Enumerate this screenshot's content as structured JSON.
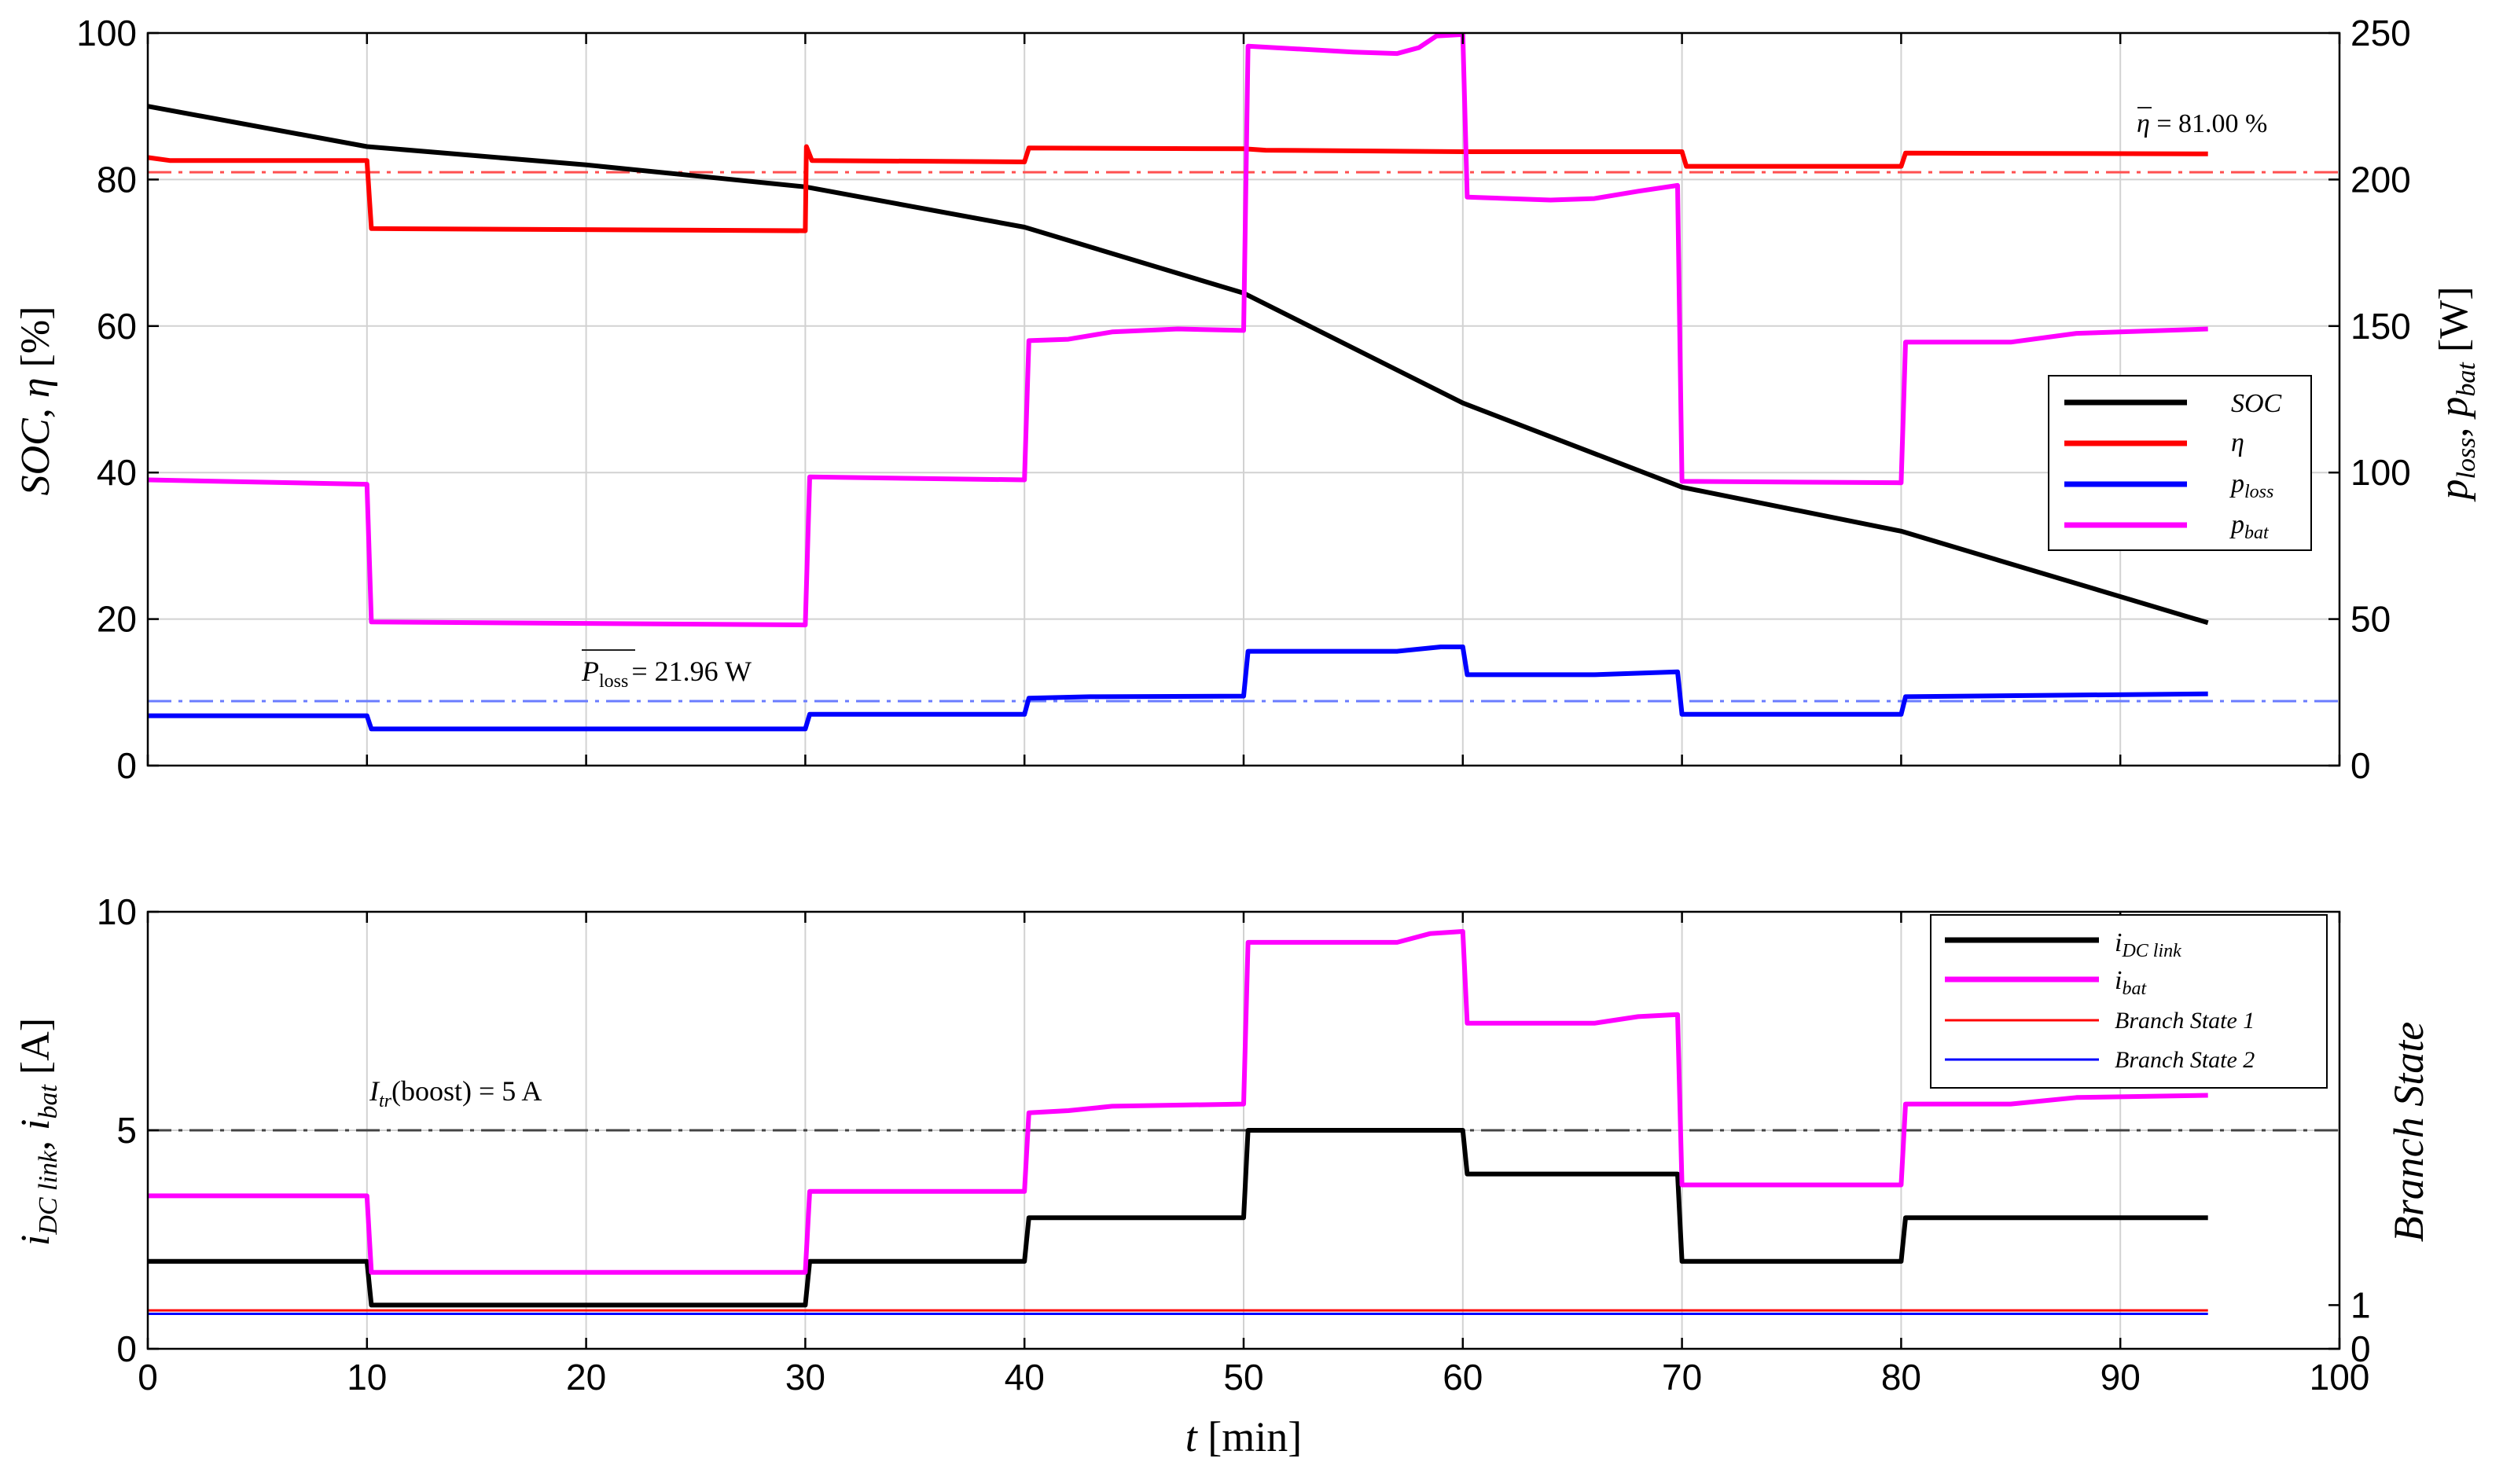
{
  "chart_data": [
    {
      "type": "line",
      "x": [
        0,
        10,
        30,
        40,
        50,
        60,
        70,
        80,
        94
      ],
      "xlim": [
        0,
        100
      ],
      "xticks": [
        0,
        10,
        20,
        30,
        40,
        50,
        60,
        70,
        80,
        90,
        100
      ],
      "ylim": [
        0,
        100
      ],
      "yticks": [
        0,
        20,
        40,
        60,
        80,
        100
      ],
      "ylabel": "SOC, η [%]",
      "ylim_right": [
        0,
        250
      ],
      "yticks_right": [
        0,
        50,
        100,
        150,
        200,
        250
      ],
      "ylabel_right": "p_loss, p_bat [W]",
      "grid": true,
      "legend_position": "right",
      "legend": [
        "SOC",
        "η",
        "p_loss",
        "p_bat"
      ],
      "series": [
        {
          "name": "SOC",
          "axis": "left",
          "color": "#000000",
          "points": [
            [
              0,
              90
            ],
            [
              10,
              84.5
            ],
            [
              20,
              82
            ],
            [
              30,
              79
            ],
            [
              40,
              73.5
            ],
            [
              50,
              64.5
            ],
            [
              60,
              49.5
            ],
            [
              70,
              38
            ],
            [
              80,
              32
            ],
            [
              94,
              19.5
            ]
          ]
        },
        {
          "name": "η",
          "axis": "left",
          "color": "#ff0000",
          "points": [
            [
              0,
              83
            ],
            [
              1,
              82.6
            ],
            [
              10,
              82.6
            ],
            [
              10.2,
              73.3
            ],
            [
              30,
              73
            ],
            [
              30.05,
              84.5
            ],
            [
              30.3,
              82.6
            ],
            [
              40,
              82.4
            ],
            [
              40.2,
              84.3
            ],
            [
              50,
              84.2
            ],
            [
              51,
              84
            ],
            [
              60,
              83.8
            ],
            [
              70,
              83.8
            ],
            [
              70.2,
              81.8
            ],
            [
              80,
              81.8
            ],
            [
              80.2,
              83.6
            ],
            [
              94,
              83.5
            ]
          ]
        },
        {
          "name": "p_loss",
          "axis": "right",
          "color": "#0000ff",
          "points": [
            [
              0,
              17
            ],
            [
              10,
              17
            ],
            [
              10.2,
              12.5
            ],
            [
              30,
              12.5
            ],
            [
              30.2,
              17.5
            ],
            [
              40,
              17.5
            ],
            [
              40.2,
              23
            ],
            [
              43,
              23.5
            ],
            [
              50,
              23.7
            ],
            [
              50.2,
              39
            ],
            [
              57,
              39
            ],
            [
              59,
              40.5
            ],
            [
              60,
              40.5
            ],
            [
              60.2,
              31
            ],
            [
              66,
              31
            ],
            [
              69.8,
              32
            ],
            [
              70,
              17.5
            ],
            [
              80,
              17.5
            ],
            [
              80.2,
              23.5
            ],
            [
              94,
              24.5
            ]
          ]
        },
        {
          "name": "p_bat",
          "axis": "right",
          "color": "#ff00ff",
          "points": [
            [
              0,
              97.5
            ],
            [
              10,
              96
            ],
            [
              10.2,
              49
            ],
            [
              30,
              48
            ],
            [
              30.2,
              98.5
            ],
            [
              40,
              97.5
            ],
            [
              40.2,
              145
            ],
            [
              42,
              145.5
            ],
            [
              44,
              148
            ],
            [
              47,
              149
            ],
            [
              50,
              148.5
            ],
            [
              50.2,
              245.5
            ],
            [
              55,
              243.5
            ],
            [
              57,
              243
            ],
            [
              58,
              245
            ],
            [
              58.8,
              249
            ],
            [
              60,
              249.5
            ],
            [
              60.2,
              194
            ],
            [
              64,
              193
            ],
            [
              66,
              193.5
            ],
            [
              68,
              196
            ],
            [
              69.8,
              198
            ],
            [
              70,
              97
            ],
            [
              80,
              96.5
            ],
            [
              80.2,
              144.5
            ],
            [
              85,
              144.5
            ],
            [
              88,
              147.5
            ],
            [
              94,
              149
            ]
          ]
        }
      ],
      "annotations": [
        {
          "text_parts": [
            "η",
            " = 81.00 %"
          ],
          "color": "#ff0000",
          "y_axis": "left",
          "y": 81
        },
        {
          "text_parts": [
            "P",
            "loss",
            "= 21.96 W"
          ],
          "color": "#3050ff",
          "y_axis": "right",
          "y": 22
        }
      ]
    },
    {
      "type": "line",
      "x": [
        0,
        10,
        30,
        40,
        50,
        60,
        70,
        80,
        94
      ],
      "xlabel": "t [min]",
      "xlim": [
        0,
        100
      ],
      "xticks": [
        0,
        10,
        20,
        30,
        40,
        50,
        60,
        70,
        80,
        90,
        100
      ],
      "ylim": [
        0,
        10
      ],
      "yticks": [
        0,
        5,
        10
      ],
      "ylabel": "i_DC link, i_bat [A]",
      "yticks_right": [
        0,
        1
      ],
      "ylabel_right": "Branch State",
      "grid": true,
      "legend_position": "top-right",
      "legend": [
        "i_DC link",
        "i_bat",
        "Branch State 1",
        "Branch State 2"
      ],
      "series": [
        {
          "name": "i_DC link",
          "color": "#000000",
          "points": [
            [
              0,
              2
            ],
            [
              10,
              2
            ],
            [
              10.2,
              1
            ],
            [
              30,
              1
            ],
            [
              30.2,
              2
            ],
            [
              40,
              2
            ],
            [
              40.2,
              3
            ],
            [
              50,
              3
            ],
            [
              50.2,
              5
            ],
            [
              60,
              5
            ],
            [
              60.2,
              4
            ],
            [
              69.8,
              4
            ],
            [
              70,
              2
            ],
            [
              80,
              2
            ],
            [
              80.2,
              3
            ],
            [
              94,
              3
            ]
          ]
        },
        {
          "name": "i_bat",
          "color": "#ff00ff",
          "points": [
            [
              0,
              3.5
            ],
            [
              10,
              3.5
            ],
            [
              10.2,
              1.75
            ],
            [
              30,
              1.75
            ],
            [
              30.2,
              3.6
            ],
            [
              40,
              3.6
            ],
            [
              40.2,
              5.4
            ],
            [
              42,
              5.45
            ],
            [
              44,
              5.55
            ],
            [
              50,
              5.6
            ],
            [
              50.2,
              9.3
            ],
            [
              57,
              9.3
            ],
            [
              58.5,
              9.5
            ],
            [
              60,
              9.55
            ],
            [
              60.2,
              7.45
            ],
            [
              66,
              7.45
            ],
            [
              68,
              7.6
            ],
            [
              69.8,
              7.65
            ],
            [
              70,
              3.75
            ],
            [
              80,
              3.75
            ],
            [
              80.2,
              5.6
            ],
            [
              85,
              5.6
            ],
            [
              88,
              5.75
            ],
            [
              94,
              5.8
            ]
          ]
        },
        {
          "name": "Branch State 1",
          "color": "#ff0000",
          "points": [
            [
              0,
              0.88
            ],
            [
              94,
              0.88
            ]
          ]
        },
        {
          "name": "Branch State 2",
          "color": "#0000ff",
          "points": [
            [
              0,
              0.8
            ],
            [
              94,
              0.8
            ]
          ]
        }
      ],
      "annotations": [
        {
          "text_parts": [
            "I",
            "tr",
            "(boost) = 5 A"
          ],
          "color": "#333333",
          "y": 5
        }
      ]
    }
  ]
}
